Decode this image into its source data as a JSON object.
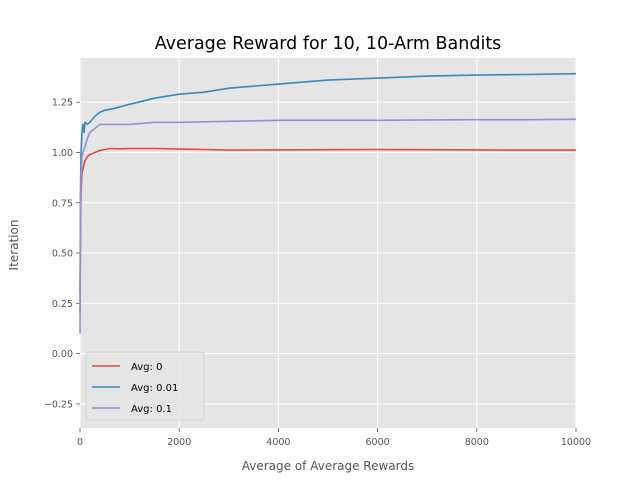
{
  "chart_data": {
    "type": "line",
    "title": "Average Reward for 10, 10-Arm Bandits",
    "xlabel": "Average of Average Rewards",
    "ylabel": "Iteration",
    "xlim": [
      0,
      10000
    ],
    "ylim": [
      -0.37,
      1.47
    ],
    "xticks": [
      0,
      2000,
      4000,
      6000,
      8000,
      10000
    ],
    "xtick_labels": [
      "0",
      "2000",
      "4000",
      "6000",
      "8000",
      "10000"
    ],
    "yticks": [
      -0.25,
      0,
      0.25,
      0.5,
      0.75,
      1.0,
      1.25
    ],
    "ytick_labels": [
      "−0.25",
      "0.00",
      "0.25",
      "0.50",
      "0.75",
      "1.00",
      "1.25"
    ],
    "grid": true,
    "legend_position": "lower-left",
    "series": [
      {
        "name": "Avg: 0",
        "color": "#E24A33",
        "x": [
          0,
          10,
          20,
          40,
          60,
          100,
          150,
          200,
          300,
          400,
          500,
          600,
          800,
          1000,
          1200,
          1500,
          2000,
          2500,
          3000,
          4000,
          5000,
          6000,
          7000,
          8000,
          9000,
          10000
        ],
        "y": [
          0.2,
          0.6,
          0.8,
          0.9,
          0.92,
          0.96,
          0.98,
          0.99,
          1.0,
          1.01,
          1.015,
          1.02,
          1.018,
          1.02,
          1.02,
          1.02,
          1.017,
          1.015,
          1.012,
          1.013,
          1.014,
          1.015,
          1.014,
          1.013,
          1.012,
          1.012
        ]
      },
      {
        "name": "Avg: 0.01",
        "color": "#348ABD",
        "x": [
          0,
          10,
          20,
          40,
          60,
          80,
          100,
          150,
          200,
          300,
          400,
          500,
          700,
          1000,
          1500,
          2000,
          2500,
          3000,
          4000,
          5000,
          6000,
          7000,
          8000,
          9000,
          10000
        ],
        "y": [
          0.3,
          0.8,
          1.0,
          1.1,
          1.14,
          1.1,
          1.15,
          1.14,
          1.15,
          1.18,
          1.2,
          1.21,
          1.22,
          1.24,
          1.27,
          1.29,
          1.3,
          1.32,
          1.34,
          1.36,
          1.37,
          1.38,
          1.385,
          1.388,
          1.392
        ]
      },
      {
        "name": "Avg: 0.1",
        "color": "#988ED5",
        "x": [
          0,
          10,
          20,
          40,
          60,
          100,
          150,
          200,
          300,
          400,
          500,
          700,
          1000,
          1500,
          2000,
          3000,
          4000,
          5000,
          6000,
          7000,
          8000,
          9000,
          10000
        ],
        "y": [
          0.1,
          0.7,
          0.88,
          0.98,
          1.0,
          1.03,
          1.07,
          1.1,
          1.12,
          1.14,
          1.14,
          1.14,
          1.14,
          1.15,
          1.15,
          1.155,
          1.16,
          1.16,
          1.16,
          1.162,
          1.163,
          1.163,
          1.165
        ]
      }
    ]
  }
}
